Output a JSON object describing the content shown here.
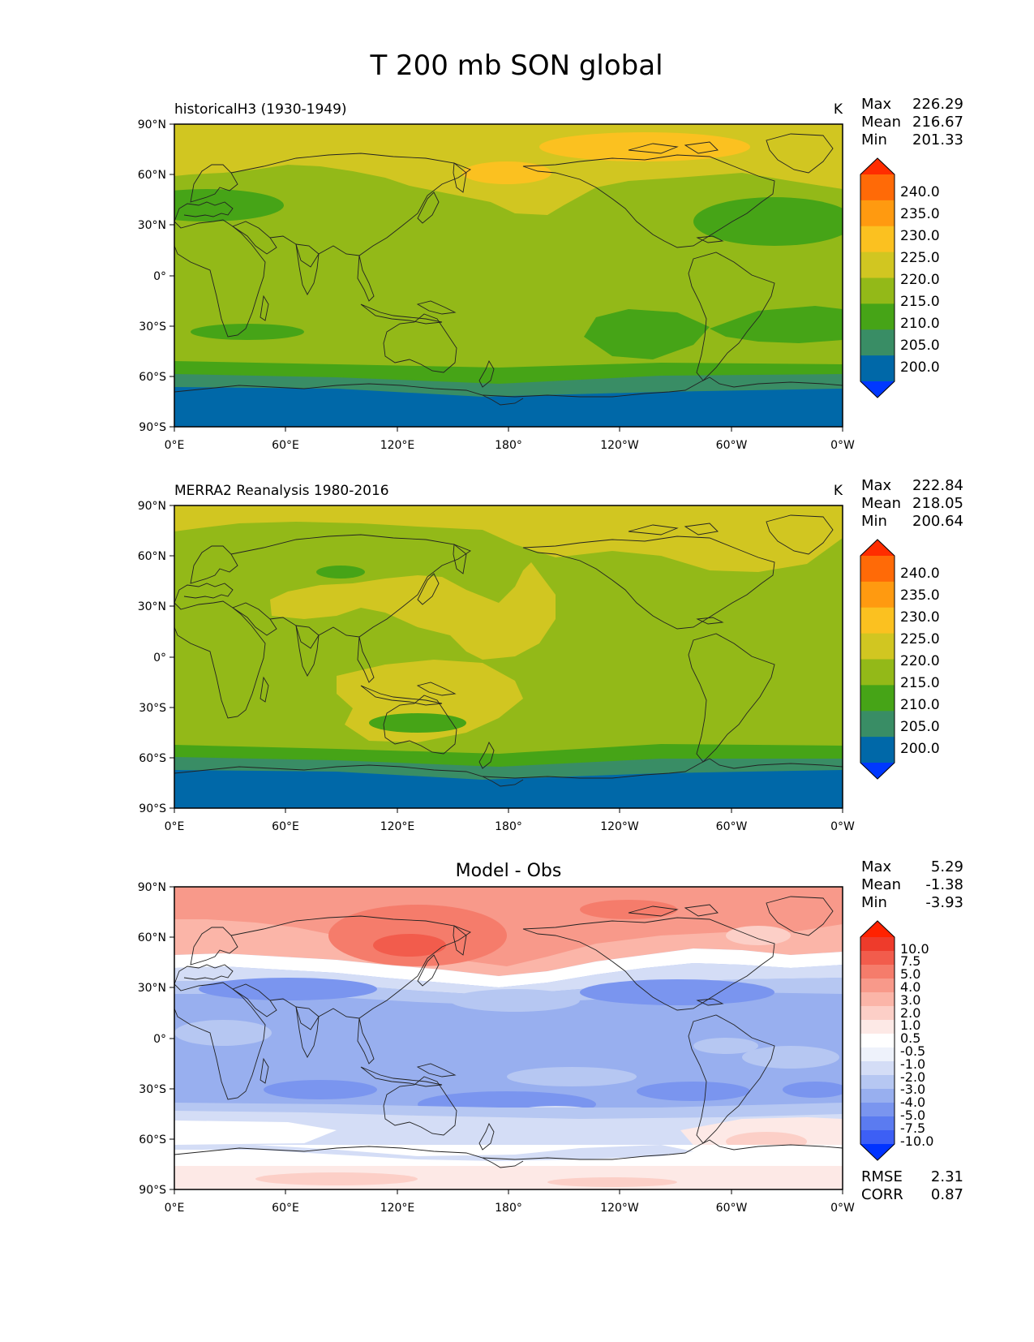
{
  "figure": {
    "title": "T 200 mb SON global",
    "x_ticks": [
      "0°E",
      "60°E",
      "120°E",
      "180°",
      "120°W",
      "60°W",
      "0°W"
    ],
    "y_ticks": [
      "90°N",
      "60°N",
      "30°N",
      "0°",
      "30°S",
      "60°S",
      "90°S"
    ]
  },
  "panels": [
    {
      "subtitle": "historicalH3 (1930-1949)",
      "units": "K",
      "stats": {
        "max_label": "Max",
        "max": "226.29",
        "mean_label": "Mean",
        "mean": "216.67",
        "min_label": "Min",
        "min": "201.33"
      },
      "colorbar_labels": [
        "240.0",
        "235.0",
        "230.0",
        "225.0",
        "220.0",
        "215.0",
        "210.0",
        "205.0",
        "200.0"
      ]
    },
    {
      "subtitle": "MERRA2 Reanalysis 1980-2016",
      "units": "K",
      "stats": {
        "max_label": "Max",
        "max": "222.84",
        "mean_label": "Mean",
        "mean": "218.05",
        "min_label": "Min",
        "min": "200.64"
      },
      "colorbar_labels": [
        "240.0",
        "235.0",
        "230.0",
        "225.0",
        "220.0",
        "215.0",
        "210.0",
        "205.0",
        "200.0"
      ]
    },
    {
      "title": "Model - Obs",
      "stats": {
        "max_label": "Max",
        "max": "5.29",
        "mean_label": "Mean",
        "mean": "-1.38",
        "min_label": "Min",
        "min": "-3.93"
      },
      "colorbar_labels": [
        "10.0",
        "7.5",
        "5.0",
        "4.0",
        "3.0",
        "2.0",
        "1.0",
        "0.5",
        "-0.5",
        "-1.0",
        "-2.0",
        "-3.0",
        "-4.0",
        "-5.0",
        "-7.5",
        "-10.0"
      ],
      "metrics": {
        "rmse_label": "RMSE",
        "rmse": "2.31",
        "corr_label": "CORR",
        "corr": "0.87"
      }
    }
  ],
  "colors": {
    "abs_levels": [
      "#0038ff",
      "#0068a8",
      "#398d65",
      "#46a417",
      "#93b918",
      "#d1c621",
      "#fbc120",
      "#ff9a10",
      "#ff6a07",
      "#ff2d00"
    ],
    "diff_levels": [
      "#0033ff",
      "#3d5ff5",
      "#5b7bf0",
      "#7a95ef",
      "#98afef",
      "#b6c7f2",
      "#d4ddf6",
      "#eef2fb",
      "#ffffff",
      "#fde9e6",
      "#fccfc7",
      "#fbb5a8",
      "#f8998a",
      "#f57c6b",
      "#f25c4c",
      "#ee3b2b",
      "#ff2200"
    ]
  }
}
